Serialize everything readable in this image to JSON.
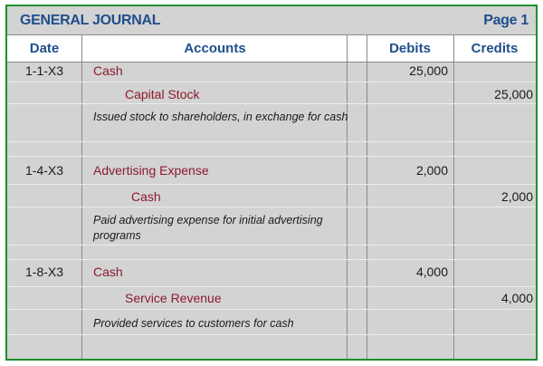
{
  "journal": {
    "title": "GENERAL JOURNAL",
    "page": "Page 1",
    "headers": {
      "date": "Date",
      "accounts": "Accounts",
      "debits": "Debits",
      "credits": "Credits"
    },
    "entries": [
      {
        "date": "1-1-X3",
        "debit_account": "Cash",
        "debit_amount": "25,000",
        "credit_account": "Capital Stock",
        "credit_amount": "25,000",
        "memo": "Issued stock to shareholders, in exchange for cash"
      },
      {
        "date": "1-4-X3",
        "debit_account": "Advertising Expense",
        "debit_amount": "2,000",
        "credit_account": "Cash",
        "credit_amount": "2,000",
        "memo": "Paid advertising expense for initial advertising programs"
      },
      {
        "date": "1-8-X3",
        "debit_account": "Cash",
        "debit_amount": "4,000",
        "credit_account": "Service Revenue",
        "credit_amount": "4,000",
        "memo": "Provided services to customers for cash"
      }
    ]
  }
}
